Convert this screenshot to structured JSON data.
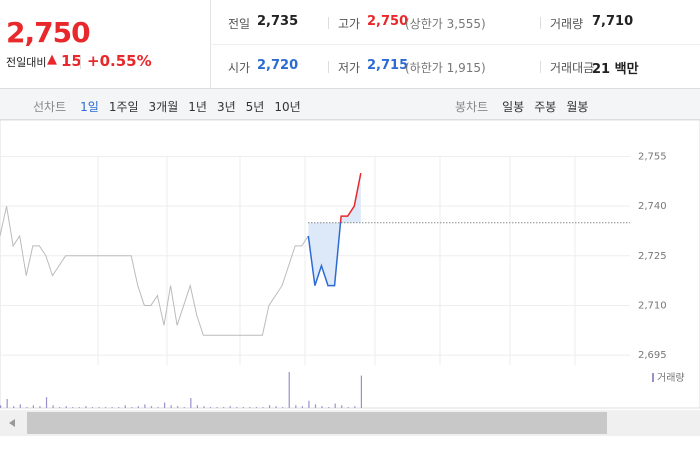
{
  "quote": {
    "price": "2,750",
    "change_label": "전일대비",
    "change_arrow": "▲",
    "change": "15",
    "change_rate": "+0.55%"
  },
  "stats": [
    {
      "label": "전일",
      "value": "2,735",
      "color": "#222222"
    },
    {
      "label": "고가",
      "value": "2,750",
      "note": "(상한가 3,555)",
      "color": "#e8282b"
    },
    {
      "label": "거래량",
      "value": "7,710",
      "color": "#222222"
    },
    {
      "label": "시가",
      "value": "2,720",
      "color": "#2b6bd3"
    },
    {
      "label": "저가",
      "value": "2,715",
      "note": "(하한가 1,915)",
      "color": "#2b6bd3"
    },
    {
      "label": "거래대금",
      "value": "21 백만",
      "color": "#222222"
    }
  ],
  "toolbar": {
    "line_label": "선차트",
    "line_periods": [
      "1일",
      "1주일",
      "3개월",
      "1년",
      "3년",
      "5년",
      "10년"
    ],
    "candle_label": "봉차트",
    "candle_periods": [
      "일봉",
      "주봉",
      "월봉"
    ]
  },
  "chart_data": {
    "type": "line",
    "ylim": [
      2692,
      2760
    ],
    "yticks": [
      {
        "value": 2755,
        "label": "2,755"
      },
      {
        "value": 2740,
        "label": "2,740"
      },
      {
        "value": 2725,
        "label": "2,725"
      },
      {
        "value": 2710,
        "label": "2,710"
      },
      {
        "value": 2695,
        "label": "2,695"
      }
    ],
    "grid": true,
    "previous_close": 2735,
    "up_color": "#e8282b",
    "down_color": "#2b6bd3",
    "fill_color": "#dde8f8",
    "series": [
      {
        "color": "#bbbbbb",
        "values": [
          2731,
          2740,
          2728,
          2731,
          2719,
          2728,
          2728,
          2725,
          2719,
          2722,
          2725,
          2725,
          2725,
          2725,
          2725,
          2725,
          2725,
          2725,
          2725,
          2725,
          2725,
          2716,
          2710,
          2710,
          2713,
          2704,
          2716,
          2704,
          2710,
          2716,
          2707,
          2701,
          2701,
          2701,
          2701,
          2701,
          2701,
          2701,
          2701,
          2701,
          2701,
          2710,
          2713,
          2716,
          2722,
          2728,
          2728,
          2731,
          null,
          null,
          null,
          null,
          null,
          null,
          null,
          null
        ]
      },
      {
        "values": [
          null,
          null,
          null,
          null,
          null,
          null,
          null,
          null,
          null,
          null,
          null,
          null,
          null,
          null,
          null,
          null,
          null,
          null,
          null,
          null,
          null,
          null,
          null,
          null,
          null,
          null,
          null,
          null,
          null,
          null,
          null,
          null,
          null,
          null,
          null,
          null,
          null,
          null,
          null,
          null,
          null,
          null,
          null,
          null,
          null,
          null,
          null,
          2731,
          2716,
          2722,
          2716,
          2716,
          2737,
          2737,
          2740,
          2750
        ]
      }
    ],
    "volume": {
      "legend": "거래량",
      "color": "#9a8fc9",
      "values": [
        3,
        10,
        2,
        4,
        1,
        3,
        2,
        12,
        3,
        1,
        2,
        1,
        1,
        2,
        1,
        1,
        1,
        1,
        1,
        3,
        1,
        2,
        4,
        2,
        1,
        6,
        3,
        2,
        1,
        11,
        3,
        2,
        1,
        1,
        1,
        2,
        1,
        1,
        1,
        1,
        1,
        3,
        2,
        1,
        40,
        3,
        2,
        8,
        4,
        2,
        1,
        5,
        3,
        1,
        2,
        36
      ]
    }
  }
}
